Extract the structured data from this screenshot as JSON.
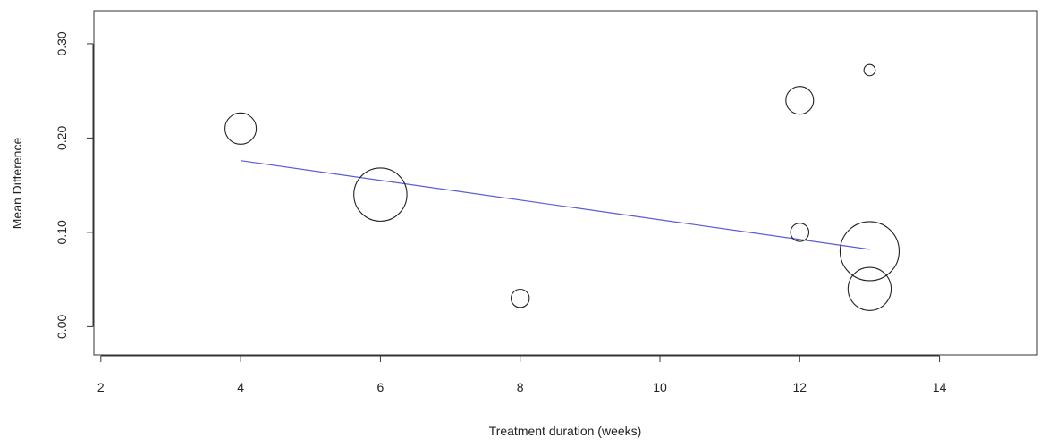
{
  "chart_data": {
    "type": "scatter",
    "title": "",
    "xlabel": "Treatment duration (weeks)",
    "ylabel": "Mean Difference",
    "xlim": [
      1.9,
      15.4
    ],
    "ylim": [
      -0.03,
      0.335
    ],
    "x_ticks": [
      2,
      4,
      6,
      8,
      10,
      12,
      14
    ],
    "x_tick_labels": [
      "2",
      "4",
      "6",
      "8",
      "10",
      "12",
      "14"
    ],
    "y_ticks": [
      0.0,
      0.1,
      0.2,
      0.3
    ],
    "y_tick_labels": [
      "0.00",
      "0.10",
      "0.20",
      "0.30"
    ],
    "grid": false,
    "series": [
      {
        "points": [
          {
            "x": 4,
            "y": 0.21,
            "weight": 0.53
          },
          {
            "x": 6,
            "y": 0.14,
            "weight": 0.9
          },
          {
            "x": 8,
            "y": 0.03,
            "weight": 0.31
          },
          {
            "x": 12,
            "y": 0.24,
            "weight": 0.47
          },
          {
            "x": 12,
            "y": 0.1,
            "weight": 0.31
          },
          {
            "x": 13,
            "y": 0.272,
            "weight": 0.19
          },
          {
            "x": 13,
            "y": 0.08,
            "weight": 1.0
          },
          {
            "x": 13,
            "y": 0.04,
            "weight": 0.73
          }
        ]
      }
    ],
    "regression_line": {
      "x": [
        4,
        13
      ],
      "y": [
        0.176,
        0.082
      ],
      "color": "#5b5bd6"
    }
  }
}
